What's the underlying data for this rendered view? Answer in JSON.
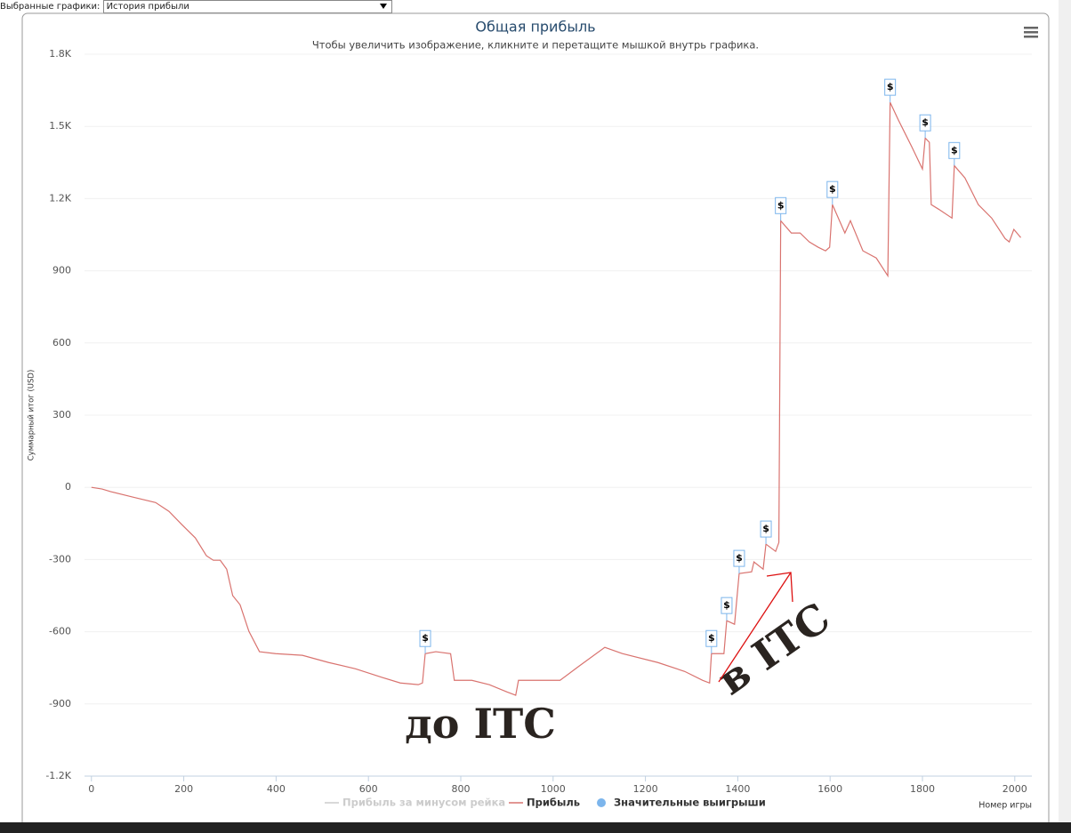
{
  "controls": {
    "selector_label": "Выбранные графики:",
    "selector_value": "История прибыли"
  },
  "chart_data": {
    "type": "line",
    "title": "Общая прибыль",
    "subtitle": "Чтобы увеличить изображение, кликните и перетащите мышкой внутрь графика.",
    "y_label": "Суммарный итог (USD)",
    "x_label": "Номер игры",
    "xlim": [
      -15,
      2037
    ],
    "ylim": [
      -1200,
      1800
    ],
    "xticks": [
      0,
      200,
      400,
      600,
      800,
      1000,
      1200,
      1400,
      1600,
      1800,
      2000
    ],
    "yticks": [
      {
        "value": -1200,
        "label": "-1.2K"
      },
      -900,
      -600,
      -300,
      0,
      300,
      600,
      900,
      {
        "value": 1200,
        "label": "1.2K"
      },
      {
        "value": 1500,
        "label": "1.5K"
      },
      {
        "value": 1800,
        "label": "1.8K"
      }
    ],
    "grid": true,
    "series": [
      {
        "name": "Прибыль за минусом рейка",
        "color": "#cccccc",
        "visible": false
      },
      {
        "name": "Прибыль",
        "color": "#d9736f",
        "x": [
          0,
          23,
          42,
          91,
          139,
          168,
          196,
          225,
          249,
          264,
          279,
          293,
          306,
          322,
          341,
          364,
          399,
          457,
          514,
          572,
          630,
          669,
          708,
          717,
          723,
          746,
          778,
          786,
          824,
          862,
          900,
          919,
          925,
          977,
          1015,
          1054,
          1112,
          1150,
          1227,
          1285,
          1324,
          1339,
          1343,
          1370,
          1376,
          1393,
          1403,
          1430,
          1435,
          1455,
          1461,
          1482,
          1489,
          1493,
          1516,
          1535,
          1555,
          1574,
          1590,
          1599,
          1605,
          1632,
          1644,
          1671,
          1700,
          1725,
          1730,
          1748,
          1777,
          1800,
          1806,
          1815,
          1819,
          1835,
          1864,
          1869,
          1892,
          1921,
          1950,
          1979,
          1988,
          1998,
          2013
        ],
        "values": [
          0,
          -7,
          -18,
          -41,
          -63,
          -100,
          -155,
          -210,
          -284,
          -303,
          -303,
          -340,
          -450,
          -488,
          -598,
          -683,
          -691,
          -698,
          -728,
          -754,
          -790,
          -813,
          -820,
          -813,
          -691,
          -683,
          -691,
          -802,
          -802,
          -820,
          -850,
          -864,
          -802,
          -802,
          -802,
          -746,
          -665,
          -691,
          -728,
          -765,
          -802,
          -813,
          -691,
          -691,
          -554,
          -569,
          -358,
          -351,
          -310,
          -340,
          -236,
          -266,
          -229,
          1108,
          1057,
          1057,
          1020,
          998,
          983,
          998,
          1175,
          1057,
          1108,
          983,
          953,
          879,
          1600,
          1526,
          1415,
          1323,
          1452,
          1434,
          1175,
          1156,
          1119,
          1337,
          1286,
          1175,
          1119,
          1034,
          1020,
          1072,
          1038
        ]
      },
      {
        "name": "Значительные выигрыши",
        "color": "#7cb5ec",
        "label": "$",
        "x": [
          723,
          1343,
          1376,
          1403,
          1461,
          1493,
          1605,
          1730,
          1806,
          1869
        ],
        "values": [
          -691,
          -691,
          -554,
          -358,
          -236,
          1108,
          1175,
          1600,
          1452,
          1337
        ]
      }
    ],
    "annotations": [
      "до ITC",
      "в ITC"
    ]
  }
}
